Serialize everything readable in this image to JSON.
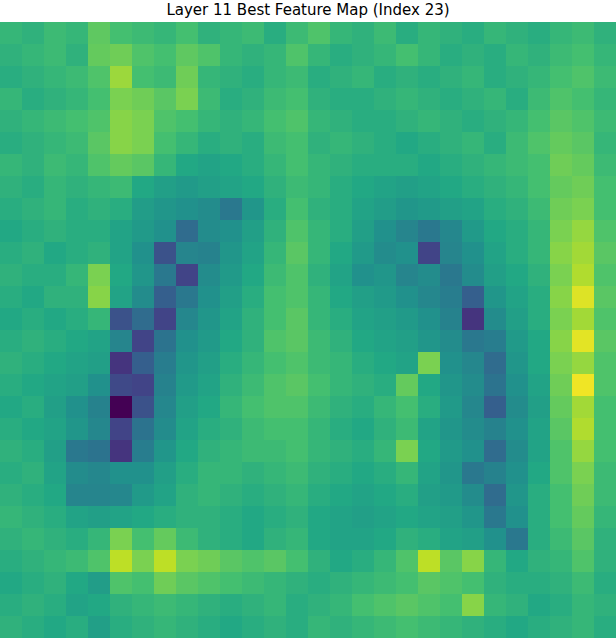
{
  "chart_data": {
    "type": "heatmap",
    "title": "Layer 11 Best Feature Map (Index 23)",
    "tick_labels": false,
    "color_range": [
      0,
      100
    ],
    "cells": [
      [
        66,
        64,
        68,
        66,
        75,
        70,
        68,
        66,
        70,
        64,
        66,
        68,
        62,
        68,
        72,
        66,
        64,
        68,
        62,
        66,
        64,
        62,
        66,
        64,
        62,
        66,
        68,
        64
      ],
      [
        64,
        66,
        68,
        64,
        76,
        78,
        72,
        70,
        75,
        72,
        66,
        64,
        66,
        72,
        66,
        62,
        64,
        66,
        70,
        66,
        62,
        64,
        62,
        66,
        64,
        68,
        70,
        66
      ],
      [
        62,
        64,
        66,
        68,
        72,
        85,
        70,
        68,
        78,
        66,
        64,
        62,
        66,
        68,
        62,
        64,
        66,
        62,
        64,
        62,
        64,
        66,
        62,
        64,
        66,
        70,
        72,
        68
      ],
      [
        66,
        62,
        64,
        66,
        70,
        80,
        78,
        74,
        80,
        68,
        62,
        64,
        68,
        70,
        64,
        62,
        62,
        64,
        66,
        64,
        62,
        64,
        66,
        62,
        68,
        72,
        70,
        66
      ],
      [
        64,
        66,
        68,
        70,
        72,
        82,
        80,
        72,
        70,
        66,
        64,
        66,
        70,
        72,
        66,
        64,
        62,
        62,
        64,
        66,
        64,
        62,
        64,
        66,
        70,
        74,
        72,
        68
      ],
      [
        62,
        64,
        66,
        68,
        74,
        82,
        80,
        70,
        66,
        62,
        64,
        62,
        68,
        70,
        64,
        66,
        64,
        62,
        60,
        62,
        64,
        66,
        62,
        68,
        72,
        76,
        74,
        66
      ],
      [
        66,
        64,
        68,
        66,
        72,
        76,
        74,
        66,
        60,
        58,
        60,
        62,
        66,
        70,
        66,
        64,
        62,
        62,
        62,
        60,
        62,
        64,
        66,
        68,
        70,
        78,
        76,
        68
      ],
      [
        64,
        62,
        66,
        64,
        66,
        68,
        60,
        56,
        54,
        56,
        58,
        60,
        64,
        68,
        66,
        62,
        60,
        58,
        56,
        58,
        60,
        62,
        64,
        66,
        70,
        76,
        78,
        70
      ],
      [
        62,
        64,
        66,
        62,
        64,
        62,
        55,
        52,
        50,
        48,
        40,
        52,
        62,
        70,
        64,
        62,
        58,
        55,
        52,
        54,
        56,
        58,
        62,
        64,
        68,
        78,
        80,
        70
      ],
      [
        60,
        62,
        64,
        62,
        62,
        58,
        54,
        50,
        35,
        48,
        50,
        56,
        64,
        72,
        66,
        62,
        56,
        50,
        45,
        40,
        46,
        54,
        60,
        62,
        66,
        80,
        84,
        72
      ],
      [
        62,
        64,
        60,
        62,
        64,
        58,
        50,
        25,
        45,
        44,
        52,
        58,
        66,
        74,
        66,
        60,
        54,
        48,
        50,
        20,
        45,
        50,
        58,
        62,
        66,
        82,
        86,
        74
      ],
      [
        64,
        62,
        62,
        66,
        80,
        60,
        52,
        40,
        20,
        48,
        54,
        60,
        68,
        72,
        64,
        58,
        50,
        52,
        45,
        48,
        40,
        48,
        56,
        60,
        64,
        80,
        88,
        72
      ],
      [
        62,
        60,
        64,
        64,
        82,
        58,
        48,
        30,
        40,
        50,
        56,
        62,
        70,
        72,
        66,
        60,
        56,
        54,
        50,
        46,
        42,
        30,
        52,
        58,
        62,
        82,
        95,
        74
      ],
      [
        60,
        62,
        60,
        62,
        66,
        25,
        35,
        20,
        46,
        52,
        58,
        64,
        70,
        74,
        66,
        62,
        58,
        56,
        54,
        50,
        44,
        15,
        48,
        56,
        62,
        80,
        86,
        72
      ],
      [
        62,
        64,
        62,
        60,
        58,
        45,
        20,
        38,
        50,
        54,
        60,
        64,
        72,
        74,
        68,
        64,
        60,
        58,
        56,
        52,
        48,
        40,
        42,
        54,
        60,
        82,
        96,
        74
      ],
      [
        64,
        62,
        60,
        58,
        56,
        15,
        30,
        42,
        52,
        56,
        62,
        66,
        70,
        72,
        68,
        66,
        62,
        60,
        58,
        80,
        50,
        46,
        35,
        52,
        60,
        80,
        84,
        72
      ],
      [
        62,
        60,
        58,
        56,
        50,
        22,
        20,
        44,
        54,
        58,
        64,
        68,
        72,
        74,
        70,
        66,
        64,
        62,
        76,
        60,
        52,
        48,
        38,
        50,
        58,
        78,
        98,
        72
      ],
      [
        60,
        62,
        56,
        50,
        44,
        0,
        25,
        46,
        56,
        60,
        66,
        70,
        72,
        72,
        68,
        64,
        62,
        66,
        70,
        62,
        54,
        46,
        30,
        48,
        56,
        76,
        86,
        70
      ],
      [
        62,
        60,
        58,
        52,
        46,
        20,
        38,
        48,
        58,
        62,
        64,
        68,
        70,
        70,
        66,
        62,
        60,
        64,
        68,
        58,
        52,
        48,
        44,
        50,
        58,
        74,
        88,
        70
      ],
      [
        64,
        62,
        56,
        40,
        38,
        15,
        42,
        52,
        60,
        64,
        66,
        68,
        68,
        70,
        66,
        64,
        62,
        66,
        80,
        60,
        54,
        50,
        35,
        48,
        58,
        72,
        84,
        70
      ],
      [
        62,
        64,
        58,
        48,
        46,
        50,
        50,
        56,
        62,
        66,
        66,
        64,
        66,
        68,
        64,
        62,
        60,
        62,
        66,
        58,
        52,
        40,
        44,
        50,
        60,
        72,
        80,
        68
      ],
      [
        64,
        62,
        60,
        45,
        45,
        46,
        54,
        58,
        64,
        66,
        64,
        62,
        64,
        66,
        62,
        60,
        58,
        60,
        62,
        56,
        54,
        48,
        35,
        52,
        62,
        70,
        78,
        68
      ],
      [
        66,
        64,
        62,
        58,
        56,
        58,
        60,
        62,
        64,
        64,
        62,
        60,
        62,
        64,
        60,
        58,
        56,
        58,
        60,
        58,
        56,
        52,
        40,
        50,
        62,
        70,
        76,
        66
      ],
      [
        64,
        66,
        64,
        62,
        66,
        80,
        70,
        76,
        68,
        64,
        62,
        60,
        64,
        66,
        60,
        58,
        58,
        60,
        64,
        62,
        58,
        56,
        50,
        40,
        62,
        68,
        74,
        64
      ],
      [
        62,
        64,
        66,
        68,
        72,
        90,
        80,
        90,
        80,
        78,
        74,
        72,
        74,
        70,
        64,
        60,
        62,
        66,
        72,
        90,
        74,
        82,
        66,
        60,
        64,
        66,
        72,
        64
      ],
      [
        60,
        62,
        64,
        60,
        55,
        72,
        70,
        78,
        74,
        72,
        70,
        68,
        66,
        64,
        62,
        64,
        66,
        68,
        70,
        74,
        72,
        70,
        64,
        62,
        62,
        64,
        68,
        62
      ],
      [
        62,
        64,
        62,
        58,
        60,
        64,
        66,
        68,
        66,
        64,
        62,
        64,
        66,
        62,
        64,
        66,
        70,
        72,
        74,
        72,
        70,
        82,
        66,
        64,
        60,
        62,
        66,
        64
      ],
      [
        64,
        62,
        60,
        62,
        56,
        62,
        64,
        66,
        64,
        62,
        60,
        62,
        64,
        62,
        66,
        64,
        66,
        68,
        70,
        68,
        66,
        64,
        62,
        60,
        62,
        64,
        66,
        62
      ]
    ]
  }
}
